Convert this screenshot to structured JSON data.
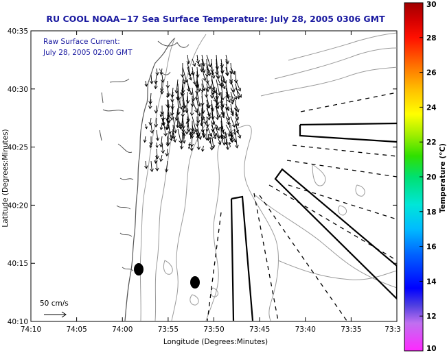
{
  "chart_data": {
    "type": "map",
    "title": "RU COOL  NOAA−17  Sea Surface Temperature:  July 28, 2005 0306 GMT",
    "xlabel": "Longitude (Degrees:Minutes)",
    "ylabel": "Latitude (Degrees:Minutes)",
    "x_ticks": [
      "74:10",
      "74:05",
      "74:00",
      "73:55",
      "73:50",
      "73:45",
      "73:40",
      "73:35",
      "73:3"
    ],
    "y_ticks": [
      "40:35",
      "40:30",
      "40:25",
      "40:20",
      "40:15",
      "40:10"
    ],
    "annotation": [
      "Raw Surface Current:",
      "July 28, 2005 02:00 GMT"
    ],
    "scale_label": "50 cm/s",
    "colorbar": {
      "label": "Temperature (°C)",
      "min": 10,
      "max": 30,
      "ticks": [
        "10",
        "12",
        "14",
        "16",
        "18",
        "20",
        "22",
        "24",
        "26",
        "28",
        "30"
      ]
    },
    "markers": [
      {
        "lon": -73.98,
        "lat": 40.245
      },
      {
        "lon": -73.905,
        "lat": 40.225
      }
    ]
  }
}
